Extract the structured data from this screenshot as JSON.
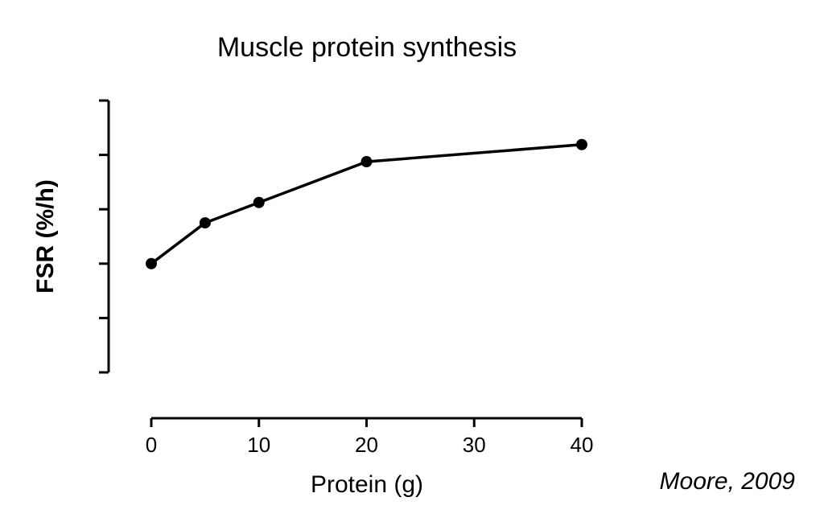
{
  "chart_data": {
    "type": "line",
    "title": "Muscle protein synthesis",
    "xlabel": "Protein (g)",
    "ylabel": "FSR (%/h)",
    "x": [
      0,
      5,
      10,
      20,
      40
    ],
    "series": [
      {
        "values": [
          0.04,
          0.055,
          0.0625,
          0.0775,
          0.0838
        ]
      }
    ],
    "xlim": [
      0,
      40
    ],
    "ylim": [
      0,
      0.1
    ],
    "x_ticks": [
      "0",
      "10",
      "20",
      "30",
      "40"
    ],
    "x_tick_values": [
      0,
      10,
      20,
      30,
      40
    ],
    "y_tick_values": [
      0,
      0.02,
      0.04,
      0.06,
      0.08,
      0.1
    ],
    "y_tick_labels_shown": false,
    "grid": false,
    "line_color": "#000000",
    "source_note": "Moore, 2009"
  }
}
